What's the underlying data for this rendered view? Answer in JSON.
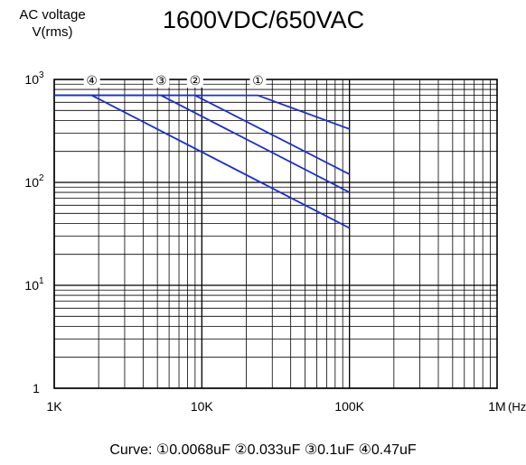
{
  "chart_data": {
    "type": "line",
    "title": "1600VDC/650VAC",
    "ylabel_lines": [
      "AC voltage",
      "V(rms)"
    ],
    "x_scale": "log",
    "y_scale": "log",
    "xlim": [
      1000,
      1000000
    ],
    "ylim": [
      1,
      1000
    ],
    "x_ticks": [
      {
        "value": 1000,
        "label": "1K"
      },
      {
        "value": 10000,
        "label": "10K"
      },
      {
        "value": 100000,
        "label": "100K"
      },
      {
        "value": 1000000,
        "label": "1M"
      }
    ],
    "x_unit": "(Hz)",
    "y_ticks": [
      {
        "value": 1,
        "base": "1",
        "exp": ""
      },
      {
        "value": 10,
        "base": "10",
        "exp": "1"
      },
      {
        "value": 100,
        "base": "10",
        "exp": "2"
      },
      {
        "value": 1000,
        "base": "10",
        "exp": "3"
      }
    ],
    "grid": true,
    "series": [
      {
        "marker": "①",
        "x": [
          1000,
          24000,
          100000
        ],
        "y": [
          700,
          700,
          330
        ]
      },
      {
        "marker": "②",
        "x": [
          1000,
          9000,
          100000
        ],
        "y": [
          700,
          700,
          120
        ]
      },
      {
        "marker": "③",
        "x": [
          1000,
          5300,
          100000
        ],
        "y": [
          700,
          700,
          80
        ]
      },
      {
        "marker": "④",
        "x": [
          1000,
          1800,
          100000
        ],
        "y": [
          700,
          700,
          36
        ]
      }
    ],
    "marker_positions": [
      {
        "label": "①",
        "x": 24000
      },
      {
        "label": "②",
        "x": 9000
      },
      {
        "label": "③",
        "x": 5300
      },
      {
        "label": "④",
        "x": 1800
      }
    ],
    "line_color": "#1a2fd0"
  },
  "caption": {
    "prefix": "Curve:",
    "items": [
      "①0.0068uF",
      "②0.033uF",
      "③0.1uF",
      "④0.47uF"
    ]
  }
}
